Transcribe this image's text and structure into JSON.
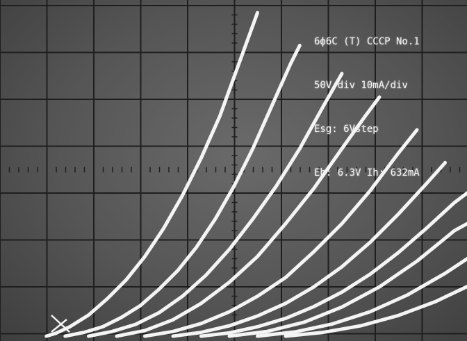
{
  "annotations": {
    "line1": "6ф6C (T) CCCP No.1",
    "line2": "50V/div 10mA/div",
    "line3": "Esg: 6Vstep",
    "line4": "Eh: 6.3V Ih: 632mA"
  },
  "colors": {
    "screen": "#5a5a5a",
    "grid": "#1e1e1e",
    "trace": "#f4f4f4",
    "text": "#f2f2f2"
  },
  "chart_data": {
    "type": "line",
    "title": "",
    "xlabel": "",
    "ylabel": "",
    "x_units_per_div": 50,
    "y_units_per_div": 10,
    "xlim": [
      0,
      500
    ],
    "ylim": [
      0,
      80
    ],
    "grid": true,
    "legend": "none",
    "series": [
      {
        "x": [
          5,
          15,
          30,
          50,
          70,
          90,
          110,
          130,
          150,
          170,
          190,
          210,
          230
        ],
        "y": [
          0,
          0.6,
          2,
          4.5,
          8,
          12,
          17,
          23,
          30,
          38,
          47,
          58,
          69
        ]
      },
      {
        "x": [
          25,
          45,
          65,
          85,
          105,
          125,
          145,
          165,
          185,
          205,
          225,
          245,
          265,
          275
        ],
        "y": [
          0,
          0.8,
          2,
          4,
          6.5,
          10,
          14,
          19,
          25,
          32,
          40,
          49,
          58,
          62
        ]
      },
      {
        "x": [
          50,
          75,
          100,
          125,
          150,
          175,
          200,
          225,
          250,
          275,
          300,
          320
        ],
        "y": [
          0,
          1,
          2.5,
          5,
          8.5,
          13,
          18.5,
          25,
          32,
          40,
          49,
          56
        ]
      },
      {
        "x": [
          80,
          110,
          140,
          170,
          200,
          230,
          260,
          290,
          320,
          345,
          360
        ],
        "y": [
          0,
          1.2,
          3.5,
          7,
          11.5,
          17,
          24,
          31.5,
          40,
          47,
          51
        ]
      },
      {
        "x": [
          110,
          140,
          170,
          200,
          230,
          260,
          290,
          320,
          350,
          380,
          400
        ],
        "y": [
          0,
          1,
          2.7,
          5.2,
          8.5,
          12.5,
          18,
          24,
          31,
          39,
          44
        ]
      },
      {
        "x": [
          140,
          170,
          200,
          230,
          260,
          290,
          320,
          350,
          380,
          410,
          430
        ],
        "y": [
          0,
          0.8,
          2.2,
          4.3,
          7,
          10.5,
          14.8,
          20,
          26,
          32.5,
          37
        ]
      },
      {
        "x": [
          170,
          200,
          230,
          260,
          290,
          320,
          350,
          380,
          410,
          440,
          470
        ],
        "y": [
          0,
          0.7,
          2,
          3.8,
          6.3,
          9.4,
          13.2,
          17.8,
          23,
          28.5,
          33
        ]
      },
      {
        "x": [
          200,
          240,
          280,
          320,
          360,
          400,
          440,
          490
        ],
        "y": [
          0,
          1,
          3,
          6.2,
          10.5,
          16,
          22.5,
          28
        ]
      },
      {
        "x": [
          230,
          270,
          310,
          350,
          390,
          430,
          470,
          520
        ],
        "y": [
          0,
          0.9,
          2.6,
          5.2,
          8.8,
          13.4,
          18.7,
          23
        ]
      },
      {
        "x": [
          260,
          300,
          340,
          380,
          420,
          460,
          500,
          560
        ],
        "y": [
          0,
          0.8,
          2.2,
          4.4,
          7.4,
          11.2,
          15.6,
          19
        ]
      }
    ]
  }
}
